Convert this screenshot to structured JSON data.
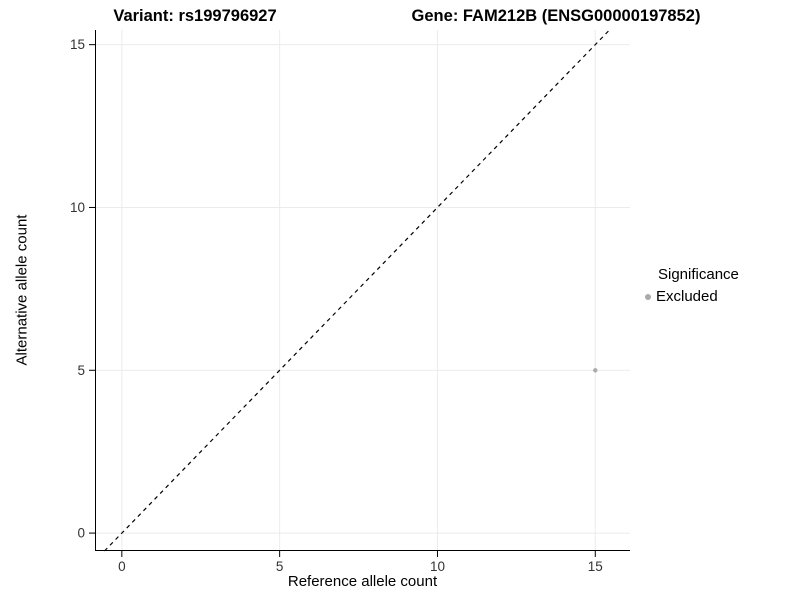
{
  "chart_data": {
    "type": "scatter",
    "title_left": "Variant: rs199796927",
    "title_right": "Gene: FAM212B (ENSG00000197852)",
    "xlabel": "Reference allele count",
    "ylabel": "Alternative allele count",
    "xlim": [
      -0.85,
      16.1
    ],
    "ylim": [
      -0.55,
      15.45
    ],
    "xticks": [
      0,
      5,
      10,
      15
    ],
    "yticks": [
      0,
      5,
      10,
      15
    ],
    "grid": true,
    "grid_color": "#ebebeb",
    "axis_color": "#000000",
    "tick_label_color": "#333333",
    "background": "#ffffff",
    "points": [
      {
        "x": 15,
        "y": 5,
        "series": "Excluded",
        "color": "#aaaaaa",
        "r": 2.2
      }
    ],
    "reference_line": {
      "type": "identity-diagonal",
      "style": "dashed",
      "color": "#000000"
    },
    "legend": {
      "title": "Significance",
      "position": "right",
      "items": [
        {
          "label": "Excluded",
          "color": "#aaaaaa"
        }
      ]
    }
  }
}
